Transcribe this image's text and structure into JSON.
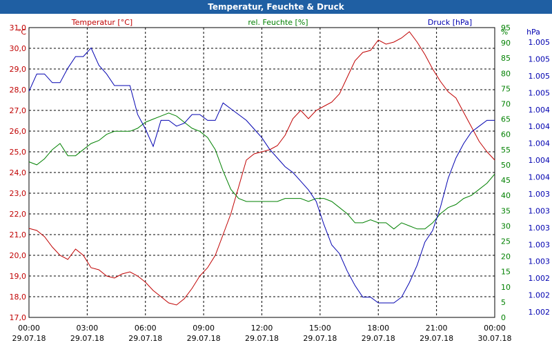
{
  "window": {
    "title": "Temperatur, Feuchte & Druck"
  },
  "colors": {
    "title_bg": "#1f5fa3",
    "temperature": "#c00000",
    "humidity": "#008000",
    "pressure": "#0000b0",
    "grid": "#000000"
  },
  "chart_data": {
    "type": "line",
    "title": "Temperatur, Feuchte & Druck",
    "xlabel": "",
    "x_ticks": [
      {
        "time": "00:00",
        "date": "29.07.18"
      },
      {
        "time": "03:00",
        "date": "29.07.18"
      },
      {
        "time": "06:00",
        "date": "29.07.18"
      },
      {
        "time": "09:00",
        "date": "29.07.18"
      },
      {
        "time": "12:00",
        "date": "29.07.18"
      },
      {
        "time": "15:00",
        "date": "29.07.18"
      },
      {
        "time": "18:00",
        "date": "29.07.18"
      },
      {
        "time": "21:00",
        "date": "29.07.18"
      },
      {
        "time": "00:00",
        "date": "30.07.18"
      }
    ],
    "xlim": [
      0,
      24
    ],
    "axes": {
      "left": {
        "unit": "°C",
        "label": "Temperatur [°C]",
        "ylim": [
          17.0,
          31.0
        ],
        "ticks": [
          "31,0",
          "30,0",
          "29,0",
          "28,0",
          "27,0",
          "26,0",
          "25,0",
          "24,0",
          "23,0",
          "22,0",
          "21,0",
          "20,0",
          "19,0",
          "18,0",
          "17,0"
        ]
      },
      "right": {
        "unit": "%",
        "label": "rel. Feuchte [%]",
        "ylim": [
          0,
          95
        ],
        "ticks": [
          "95",
          "90",
          "85",
          "80",
          "75",
          "70",
          "65",
          "60",
          "55",
          "50",
          "45",
          "40",
          "35",
          "30",
          "25",
          "20",
          "15",
          "10",
          "5",
          "0"
        ]
      },
      "far_right": {
        "unit": "hPa",
        "label": "Druck [hPa]",
        "ticks": [
          "1.005",
          "1.005",
          "1.005",
          "1.005",
          "1.004",
          "1.004",
          "1.004",
          "1.004",
          "1.004",
          "1.003",
          "1.003",
          "1.003",
          "1.003",
          "1.003",
          "1.002",
          "1.002",
          "1.002"
        ]
      }
    },
    "series": [
      {
        "name": "Temperatur [°C]",
        "axis": "left",
        "color": "#c00000",
        "x": [
          0,
          0.4,
          0.8,
          1.2,
          1.6,
          2.0,
          2.4,
          2.8,
          3.2,
          3.6,
          4.0,
          4.4,
          4.8,
          5.2,
          5.6,
          6.0,
          6.4,
          6.8,
          7.2,
          7.6,
          8.0,
          8.4,
          8.8,
          9.2,
          9.6,
          10.0,
          10.4,
          10.8,
          11.2,
          11.6,
          12.0,
          12.4,
          12.8,
          13.2,
          13.6,
          14.0,
          14.4,
          14.8,
          15.2,
          15.6,
          16.0,
          16.4,
          16.8,
          17.2,
          17.6,
          18.0,
          18.4,
          18.8,
          19.2,
          19.6,
          20.0,
          20.4,
          20.8,
          21.2,
          21.6,
          22.0,
          22.4,
          22.8,
          23.2,
          23.6,
          24.0
        ],
        "y": [
          21.3,
          21.2,
          20.9,
          20.4,
          20.0,
          19.8,
          20.3,
          20.0,
          19.4,
          19.3,
          19.0,
          18.9,
          19.1,
          19.2,
          19.0,
          18.7,
          18.3,
          18.0,
          17.7,
          17.6,
          17.9,
          18.4,
          19.0,
          19.4,
          20.0,
          21.0,
          22.0,
          23.3,
          24.6,
          24.9,
          25.0,
          25.1,
          25.3,
          25.8,
          26.6,
          27.0,
          26.6,
          27.0,
          27.2,
          27.4,
          27.8,
          28.6,
          29.4,
          29.8,
          29.9,
          30.4,
          30.2,
          30.3,
          30.5,
          30.8,
          30.3,
          29.7,
          29.0,
          28.4,
          27.9,
          27.6,
          26.9,
          26.2,
          25.5,
          25.0,
          24.6
        ]
      },
      {
        "name": "rel. Feuchte [%]",
        "axis": "right",
        "color": "#008000",
        "x": [
          0,
          0.4,
          0.8,
          1.2,
          1.6,
          2.0,
          2.4,
          2.8,
          3.2,
          3.6,
          4.0,
          4.4,
          4.8,
          5.2,
          5.6,
          6.0,
          6.4,
          6.8,
          7.2,
          7.6,
          8.0,
          8.4,
          8.8,
          9.2,
          9.6,
          10.0,
          10.4,
          10.8,
          11.2,
          11.6,
          12.0,
          12.4,
          12.8,
          13.2,
          13.6,
          14.0,
          14.4,
          14.8,
          15.2,
          15.6,
          16.0,
          16.4,
          16.8,
          17.2,
          17.6,
          18.0,
          18.4,
          18.8,
          19.2,
          19.6,
          20.0,
          20.4,
          20.8,
          21.2,
          21.6,
          22.0,
          22.4,
          22.8,
          23.2,
          23.6,
          24.0
        ],
        "y": [
          51,
          50,
          52,
          55,
          57,
          53,
          53,
          55,
          57,
          58,
          60,
          61,
          61,
          61,
          62,
          64,
          65,
          66,
          67,
          66,
          64,
          62,
          61,
          59,
          55,
          48,
          42,
          39,
          38,
          38,
          38,
          38,
          38,
          39,
          39,
          39,
          38,
          39,
          39,
          38,
          36,
          34,
          31,
          31,
          32,
          31,
          31,
          29,
          31,
          30,
          29,
          29,
          31,
          34,
          36,
          37,
          39,
          40,
          42,
          44,
          47
        ]
      },
      {
        "name": "Druck [hPa]",
        "axis": "far_right",
        "color": "#0000b0",
        "unit_note": "relative trace 0–100 between axis extremes",
        "x": [
          0,
          0.4,
          0.8,
          1.2,
          1.6,
          2.0,
          2.4,
          2.8,
          3.2,
          3.6,
          4.0,
          4.4,
          4.8,
          5.2,
          5.6,
          6.0,
          6.4,
          6.8,
          7.2,
          7.6,
          8.0,
          8.4,
          8.8,
          9.2,
          9.6,
          10.0,
          10.4,
          10.8,
          11.2,
          11.6,
          12.0,
          12.4,
          12.8,
          13.2,
          13.6,
          14.0,
          14.4,
          14.8,
          15.2,
          15.6,
          16.0,
          16.4,
          16.8,
          17.2,
          17.6,
          18.0,
          18.4,
          18.8,
          19.2,
          19.6,
          20.0,
          20.4,
          20.8,
          21.2,
          21.6,
          22.0,
          22.4,
          22.8,
          23.2,
          23.6,
          24.0
        ],
        "y": [
          78,
          84,
          84,
          81,
          81,
          86,
          90,
          90,
          93,
          87,
          84,
          80,
          80,
          80,
          70,
          65,
          59,
          68,
          68,
          66,
          67,
          70,
          70,
          68,
          68,
          74,
          72,
          70,
          68,
          65,
          62,
          58,
          55,
          52,
          50,
          47,
          44,
          40,
          32,
          25,
          22,
          16,
          11,
          7,
          7,
          5,
          5,
          5,
          7,
          12,
          18,
          26,
          30,
          38,
          48,
          55,
          60,
          64,
          66,
          68,
          68
        ]
      }
    ]
  }
}
